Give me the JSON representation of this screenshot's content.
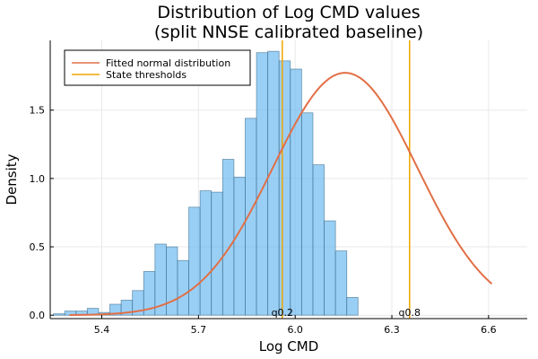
{
  "chart_data": {
    "type": "bar",
    "title_lines": [
      "Distribution of Log CMD values",
      "(split NNSE calibrated baseline)"
    ],
    "xlabel": "Log CMD",
    "ylabel": "Density",
    "xlim": [
      5.24,
      6.72
    ],
    "ylim": [
      -0.025,
      2.01
    ],
    "xticks": [
      5.4,
      5.7,
      6.0,
      6.3,
      6.6
    ],
    "xtick_labels": [
      "5.4",
      "5.7",
      "6.0",
      "6.3",
      "6.6"
    ],
    "yticks": [
      0.0,
      0.5,
      1.0,
      1.5
    ],
    "ytick_labels": [
      "0.0",
      "0.5",
      "1.0",
      "1.5"
    ],
    "grid": true,
    "histogram": {
      "name": "",
      "color": "#64b5f0",
      "bin_start": 5.25,
      "bin_width": 0.035,
      "densities": [
        0.01,
        0.03,
        0.03,
        0.05,
        0.02,
        0.08,
        0.11,
        0.18,
        0.32,
        0.52,
        0.5,
        0.4,
        0.79,
        0.91,
        0.9,
        1.14,
        1.01,
        1.44,
        1.92,
        1.93,
        1.86,
        1.8,
        1.48,
        1.1,
        0.69,
        0.47,
        0.13
      ]
    },
    "fitted_normal": {
      "name": "Fitted normal distribution",
      "color": "#e26f46",
      "mean": 6.155,
      "sd": 0.225,
      "x_range": [
        5.3,
        6.61
      ]
    },
    "thresholds": {
      "name": "State thresholds",
      "color": "#f0a500",
      "values": [
        5.96,
        6.355
      ],
      "labels": [
        "q0.2",
        "q0.8"
      ]
    },
    "legend": {
      "position": "top-left",
      "entries": [
        "Fitted normal distribution",
        "State thresholds"
      ]
    }
  }
}
